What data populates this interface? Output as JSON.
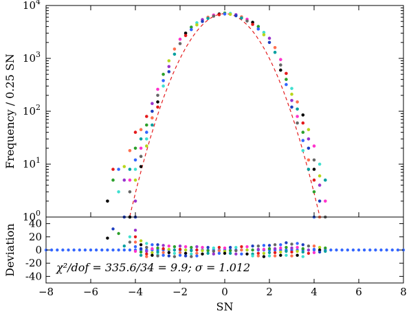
{
  "chart_data": [
    {
      "type": "scatter",
      "panel": "top",
      "scale_y": "log",
      "xlim": [
        -8,
        8
      ],
      "ylim": [
        1,
        10000
      ],
      "ylabel": "Frequency / 0.25 SN",
      "x_ticks": [
        -8,
        -6,
        -4,
        -2,
        0,
        2,
        4,
        6,
        8
      ],
      "y_ticks": [
        {
          "base": "10",
          "exp": "0",
          "value": 1
        },
        {
          "base": "10",
          "exp": "1",
          "value": 10
        },
        {
          "base": "10",
          "exp": "2",
          "value": 100
        },
        {
          "base": "10",
          "exp": "3",
          "value": 1000
        },
        {
          "base": "10",
          "exp": "4",
          "value": 10000
        }
      ],
      "bin_width": 0.25,
      "n_realizations": 12,
      "series_colors": [
        "#000000",
        "#e41a1c",
        "#2ca02c",
        "#3366ff",
        "#40e0d0",
        "#b8d61b",
        "#9933cc",
        "#1f3fbf",
        "#ff6f4f",
        "#00a0a0",
        "#ff33cc",
        "#666666"
      ],
      "model": {
        "name": "gaussian",
        "peak": 7000,
        "sigma": 1.012,
        "line_color": "#e41a1c",
        "style": "dashed"
      },
      "points": [
        [
          -5.25,
          2
        ],
        [
          -5.0,
          8
        ],
        [
          -5.0,
          5
        ],
        [
          -4.75,
          8
        ],
        [
          -4.75,
          3
        ],
        [
          -4.5,
          9
        ],
        [
          -4.5,
          5
        ],
        [
          -4.5,
          1
        ],
        [
          -4.25,
          18
        ],
        [
          -4.25,
          8
        ],
        [
          -4.25,
          5
        ],
        [
          -4.25,
          3
        ],
        [
          -4.25,
          1
        ],
        [
          -4.0,
          40
        ],
        [
          -4.0,
          20
        ],
        [
          -4.0,
          12
        ],
        [
          -4.0,
          8
        ],
        [
          -4.0,
          5
        ],
        [
          -4.0,
          2
        ],
        [
          -4.0,
          1
        ],
        [
          -3.75,
          45
        ],
        [
          -3.75,
          30
        ],
        [
          -3.75,
          20
        ],
        [
          -3.75,
          14
        ],
        [
          -3.75,
          9
        ],
        [
          -3.5,
          80
        ],
        [
          -3.5,
          55
        ],
        [
          -3.5,
          40
        ],
        [
          -3.5,
          30
        ],
        [
          -3.5,
          22
        ],
        [
          -3.25,
          140
        ],
        [
          -3.25,
          100
        ],
        [
          -3.25,
          75
        ],
        [
          -3.25,
          55
        ],
        [
          -3.0,
          260
        ],
        [
          -3.0,
          200
        ],
        [
          -3.0,
          150
        ],
        [
          -3.0,
          120
        ],
        [
          -2.75,
          500
        ],
        [
          -2.75,
          380
        ],
        [
          -2.75,
          300
        ],
        [
          -2.5,
          900
        ],
        [
          -2.5,
          700
        ],
        [
          -2.5,
          560
        ],
        [
          -2.25,
          1500
        ],
        [
          -2.25,
          1200
        ],
        [
          -2.0,
          2300
        ],
        [
          -2.0,
          1900
        ],
        [
          -1.75,
          3000
        ],
        [
          -1.75,
          2700
        ],
        [
          -1.5,
          3900
        ],
        [
          -1.5,
          3500
        ],
        [
          -1.25,
          4700
        ],
        [
          -1.25,
          4300
        ],
        [
          -1.0,
          5400
        ],
        [
          -1.0,
          5000
        ],
        [
          -0.75,
          6000
        ],
        [
          -0.75,
          5700
        ],
        [
          -0.5,
          6600
        ],
        [
          -0.5,
          6300
        ],
        [
          -0.25,
          6900
        ],
        [
          -0.25,
          6700
        ],
        [
          0.0,
          7200
        ],
        [
          0.0,
          6900
        ],
        [
          0.25,
          7100
        ],
        [
          0.25,
          6800
        ],
        [
          0.5,
          6700
        ],
        [
          0.5,
          6400
        ],
        [
          0.75,
          6100
        ],
        [
          0.75,
          5800
        ],
        [
          1.0,
          5500
        ],
        [
          1.0,
          5100
        ],
        [
          1.25,
          4800
        ],
        [
          1.25,
          4400
        ],
        [
          1.5,
          4000
        ],
        [
          1.5,
          3600
        ],
        [
          1.75,
          3100
        ],
        [
          1.75,
          2800
        ],
        [
          2.0,
          2400
        ],
        [
          2.0,
          2000
        ],
        [
          2.25,
          1600
        ],
        [
          2.25,
          1300
        ],
        [
          2.5,
          950
        ],
        [
          2.5,
          750
        ],
        [
          2.5,
          600
        ],
        [
          2.75,
          520
        ],
        [
          2.75,
          400
        ],
        [
          2.75,
          320
        ],
        [
          3.0,
          270
        ],
        [
          3.0,
          210
        ],
        [
          3.0,
          160
        ],
        [
          3.0,
          120
        ],
        [
          3.25,
          150
        ],
        [
          3.25,
          110
        ],
        [
          3.25,
          80
        ],
        [
          3.25,
          60
        ],
        [
          3.5,
          85
        ],
        [
          3.5,
          60
        ],
        [
          3.5,
          40
        ],
        [
          3.5,
          28
        ],
        [
          3.5,
          18
        ],
        [
          3.75,
          45
        ],
        [
          3.75,
          30
        ],
        [
          3.75,
          20
        ],
        [
          3.75,
          12
        ],
        [
          3.75,
          8
        ],
        [
          4.0,
          22
        ],
        [
          4.0,
          12
        ],
        [
          4.0,
          8
        ],
        [
          4.0,
          5
        ],
        [
          4.0,
          3
        ],
        [
          4.0,
          1
        ],
        [
          4.25,
          10
        ],
        [
          4.25,
          6
        ],
        [
          4.25,
          4
        ],
        [
          4.25,
          2
        ],
        [
          4.25,
          1
        ],
        [
          4.5,
          5
        ],
        [
          4.5,
          2
        ],
        [
          4.5,
          1
        ]
      ]
    },
    {
      "type": "scatter",
      "panel": "bottom",
      "xlim": [
        -8,
        8
      ],
      "ylim": [
        -50,
        50
      ],
      "xlabel": "SN",
      "ylabel": "Deviation",
      "x_ticks": [
        -8,
        -6,
        -4,
        -2,
        0,
        2,
        4,
        6,
        8
      ],
      "y_ticks": [
        -40,
        -20,
        0,
        20,
        40
      ],
      "annotation": "χ²/dof = 335.6/34 = 9.9; σ = 1.012",
      "baseline_color": "#3366ff",
      "baseline_x_range": [
        -8,
        8
      ],
      "points": [
        [
          -5.25,
          18
        ],
        [
          -5.0,
          32
        ],
        [
          -4.75,
          25
        ],
        [
          -4.5,
          6
        ],
        [
          -4.25,
          20
        ],
        [
          -4.25,
          12
        ],
        [
          -4.0,
          30
        ],
        [
          -4.0,
          20
        ],
        [
          -4.0,
          12
        ],
        [
          -4.0,
          5
        ],
        [
          -4.0,
          -2
        ],
        [
          -3.75,
          14
        ],
        [
          -3.75,
          8
        ],
        [
          -3.75,
          2
        ],
        [
          -3.75,
          -3
        ],
        [
          -3.75,
          -8
        ],
        [
          -3.5,
          10
        ],
        [
          -3.5,
          4
        ],
        [
          -3.5,
          -2
        ],
        [
          -3.5,
          -6
        ],
        [
          -3.5,
          -10
        ],
        [
          -3.25,
          8
        ],
        [
          -3.25,
          2
        ],
        [
          -3.25,
          -4
        ],
        [
          -3.25,
          -8
        ],
        [
          -3.0,
          8
        ],
        [
          -3.0,
          3
        ],
        [
          -3.0,
          -3
        ],
        [
          -3.0,
          -7
        ],
        [
          -3.0,
          -9
        ],
        [
          -2.75,
          7
        ],
        [
          -2.75,
          2
        ],
        [
          -2.75,
          -4
        ],
        [
          -2.75,
          -8
        ],
        [
          -2.5,
          6
        ],
        [
          -2.5,
          1
        ],
        [
          -2.5,
          -4
        ],
        [
          -2.5,
          -9
        ],
        [
          -2.25,
          5
        ],
        [
          -2.25,
          0
        ],
        [
          -2.25,
          -5
        ],
        [
          -2.25,
          -10
        ],
        [
          -2.0,
          6
        ],
        [
          -2.0,
          1
        ],
        [
          -2.0,
          -4
        ],
        [
          -2.0,
          -8
        ],
        [
          -1.75,
          5
        ],
        [
          -1.75,
          0
        ],
        [
          -1.75,
          -5
        ],
        [
          -1.75,
          -9
        ],
        [
          -1.5,
          4
        ],
        [
          -1.5,
          -1
        ],
        [
          -1.5,
          -6
        ],
        [
          -1.5,
          -10
        ],
        [
          -1.25,
          5
        ],
        [
          -1.25,
          0
        ],
        [
          -1.25,
          -5
        ],
        [
          -1.25,
          -9
        ],
        [
          -1.0,
          4
        ],
        [
          -1.0,
          -1
        ],
        [
          -1.0,
          -6
        ],
        [
          -0.75,
          4
        ],
        [
          -0.75,
          -1
        ],
        [
          -0.75,
          -5
        ],
        [
          -0.5,
          3
        ],
        [
          -0.5,
          -2
        ],
        [
          -0.5,
          -6
        ],
        [
          -0.25,
          4
        ],
        [
          -0.25,
          -1
        ],
        [
          -0.25,
          -5
        ],
        [
          0.0,
          3
        ],
        [
          0.0,
          -2
        ],
        [
          0.0,
          -5
        ],
        [
          0.25,
          4
        ],
        [
          0.25,
          -1
        ],
        [
          0.25,
          -5
        ],
        [
          0.5,
          4
        ],
        [
          0.5,
          -1
        ],
        [
          0.5,
          -6
        ],
        [
          0.75,
          5
        ],
        [
          0.75,
          0
        ],
        [
          0.75,
          -6
        ],
        [
          1.0,
          5
        ],
        [
          1.0,
          0
        ],
        [
          1.0,
          -6
        ],
        [
          1.25,
          6
        ],
        [
          1.25,
          0
        ],
        [
          1.25,
          -6
        ],
        [
          1.25,
          -9
        ],
        [
          1.5,
          6
        ],
        [
          1.5,
          1
        ],
        [
          1.5,
          -5
        ],
        [
          1.5,
          -9
        ],
        [
          1.75,
          7
        ],
        [
          1.75,
          1
        ],
        [
          1.75,
          -5
        ],
        [
          1.75,
          -10
        ],
        [
          2.0,
          7
        ],
        [
          2.0,
          2
        ],
        [
          2.0,
          -4
        ],
        [
          2.0,
          -9
        ],
        [
          2.25,
          8
        ],
        [
          2.25,
          2
        ],
        [
          2.25,
          -4
        ],
        [
          2.25,
          -9
        ],
        [
          2.5,
          8
        ],
        [
          2.5,
          3
        ],
        [
          2.5,
          -3
        ],
        [
          2.5,
          -8
        ],
        [
          2.75,
          11
        ],
        [
          2.75,
          4
        ],
        [
          2.75,
          -2
        ],
        [
          2.75,
          -8
        ],
        [
          3.0,
          9
        ],
        [
          3.0,
          3
        ],
        [
          3.0,
          -3
        ],
        [
          3.0,
          -9
        ],
        [
          3.25,
          10
        ],
        [
          3.25,
          4
        ],
        [
          3.25,
          -2
        ],
        [
          3.25,
          -8
        ],
        [
          3.5,
          8
        ],
        [
          3.5,
          2
        ],
        [
          3.5,
          -3
        ],
        [
          3.5,
          -10
        ],
        [
          3.75,
          6
        ],
        [
          3.75,
          0
        ],
        [
          3.75,
          -5
        ],
        [
          4.0,
          6
        ],
        [
          4.0,
          1
        ],
        [
          4.0,
          -4
        ],
        [
          4.25,
          4
        ],
        [
          4.25,
          0
        ],
        [
          4.25,
          -3
        ],
        [
          4.5,
          3
        ],
        [
          4.5,
          -2
        ]
      ]
    }
  ]
}
